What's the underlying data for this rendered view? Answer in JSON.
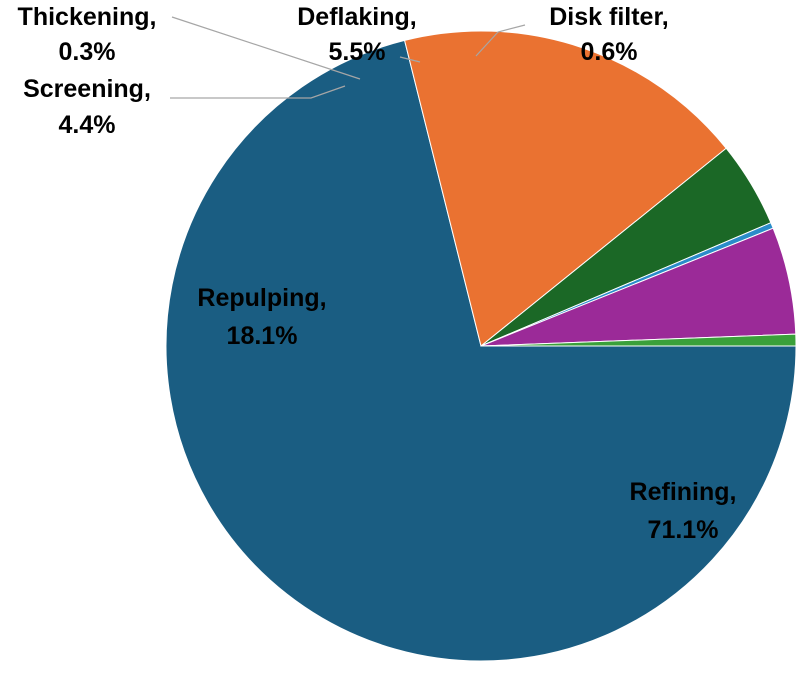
{
  "chart_data": {
    "type": "pie",
    "title": "",
    "start_angle_deg": 0,
    "direction": "clockwise",
    "slices": [
      {
        "label": "Refining,",
        "value_text": "71.1%",
        "value": 71.1,
        "color": "#1a5d82"
      },
      {
        "label": "Repulping,",
        "value_text": "18.1%",
        "value": 18.1,
        "color": "#ea7231"
      },
      {
        "label": "Screening,",
        "value_text": "4.4%",
        "value": 4.4,
        "color": "#1b6826"
      },
      {
        "label": "Thickening,",
        "value_text": "0.3%",
        "value": 0.3,
        "color": "#2a8cc9"
      },
      {
        "label": "Deflaking,",
        "value_text": "5.5%",
        "value": 5.5,
        "color": "#9b2a98"
      },
      {
        "label": "Disk filter,",
        "value_text": "0.6%",
        "value": 0.6,
        "color": "#3aa03a"
      }
    ]
  }
}
